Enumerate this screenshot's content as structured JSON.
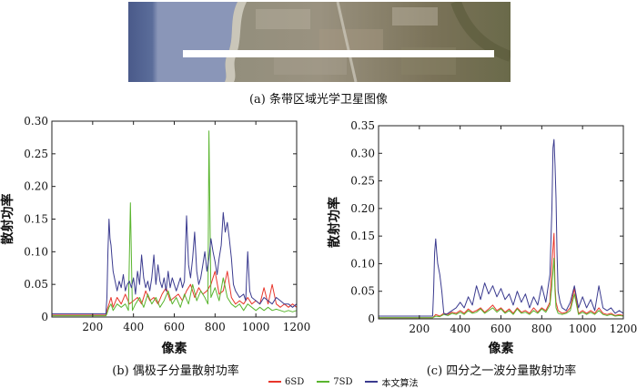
{
  "figure": {
    "caption_a": "(a) 条带区域光学卫星图像",
    "caption_b": "(b) 偶极子分量散射功率",
    "caption_c": "(c) 四分之一波分量散射功率"
  },
  "colors": {
    "6SD": "#e8362b",
    "7SD": "#5ab52f",
    "proposed": "#3b3b8f"
  },
  "legend": [
    "6SD",
    "7SD",
    "本文算法"
  ],
  "chart_data": [
    {
      "type": "line",
      "title": "",
      "xlabel": "像素",
      "ylabel": "散射功率",
      "xlim": [
        0,
        1200
      ],
      "ylim": [
        0,
        0.3
      ],
      "xticks": [
        200,
        400,
        600,
        800,
        1000,
        1200
      ],
      "yticks": [
        0,
        0.05,
        0.1,
        0.15,
        0.2,
        0.25,
        0.3
      ],
      "ytick_labels": [
        "0",
        "0.05",
        "0.10",
        "0.15",
        "0.20",
        "0.25",
        "0.30"
      ],
      "series": [
        {
          "name": "本文算法",
          "color": "#3b3b8f",
          "x": [
            0,
            265,
            270,
            275,
            280,
            285,
            290,
            295,
            300,
            310,
            320,
            330,
            340,
            350,
            360,
            370,
            380,
            390,
            400,
            410,
            420,
            430,
            440,
            450,
            460,
            470,
            480,
            490,
            500,
            510,
            520,
            530,
            540,
            550,
            560,
            570,
            580,
            590,
            600,
            610,
            620,
            630,
            640,
            650,
            660,
            670,
            680,
            690,
            700,
            710,
            720,
            730,
            740,
            750,
            760,
            770,
            780,
            790,
            800,
            810,
            820,
            830,
            840,
            850,
            860,
            870,
            880,
            890,
            900,
            920,
            940,
            950,
            960,
            970,
            980,
            1000,
            1020,
            1040,
            1060,
            1080,
            1100,
            1120,
            1140,
            1160,
            1180,
            1200
          ],
          "y": [
            0.005,
            0.005,
            0.03,
            0.1,
            0.15,
            0.12,
            0.11,
            0.09,
            0.07,
            0.055,
            0.04,
            0.055,
            0.045,
            0.065,
            0.04,
            0.05,
            0.055,
            0.045,
            0.06,
            0.035,
            0.07,
            0.05,
            0.095,
            0.06,
            0.045,
            0.055,
            0.04,
            0.06,
            0.095,
            0.05,
            0.08,
            0.055,
            0.045,
            0.06,
            0.04,
            0.07,
            0.045,
            0.06,
            0.05,
            0.04,
            0.05,
            0.06,
            0.045,
            0.055,
            0.155,
            0.08,
            0.06,
            0.09,
            0.13,
            0.07,
            0.05,
            0.06,
            0.08,
            0.1,
            0.07,
            0.09,
            0.12,
            0.1,
            0.085,
            0.065,
            0.09,
            0.11,
            0.16,
            0.13,
            0.145,
            0.12,
            0.09,
            0.05,
            0.04,
            0.03,
            0.035,
            0.025,
            0.1,
            0.04,
            0.03,
            0.025,
            0.02,
            0.03,
            0.025,
            0.02,
            0.03,
            0.025,
            0.02,
            0.02,
            0.015,
            0.02
          ]
        },
        {
          "name": "6SD",
          "color": "#e8362b",
          "x": [
            0,
            265,
            270,
            280,
            290,
            300,
            320,
            340,
            360,
            380,
            400,
            420,
            440,
            460,
            480,
            500,
            520,
            540,
            560,
            580,
            600,
            620,
            640,
            660,
            680,
            700,
            720,
            740,
            760,
            780,
            800,
            820,
            840,
            860,
            880,
            900,
            920,
            940,
            960,
            980,
            1000,
            1020,
            1040,
            1060,
            1080,
            1100,
            1120,
            1140,
            1160,
            1180,
            1200
          ],
          "y": [
            0.003,
            0.003,
            0.01,
            0.02,
            0.03,
            0.015,
            0.03,
            0.02,
            0.035,
            0.02,
            0.025,
            0.03,
            0.02,
            0.04,
            0.025,
            0.03,
            0.02,
            0.035,
            0.045,
            0.025,
            0.03,
            0.035,
            0.025,
            0.04,
            0.05,
            0.03,
            0.045,
            0.035,
            0.04,
            0.05,
            0.07,
            0.035,
            0.04,
            0.07,
            0.03,
            0.02,
            0.025,
            0.02,
            0.03,
            0.02,
            0.025,
            0.02,
            0.045,
            0.02,
            0.05,
            0.02,
            0.015,
            0.02,
            0.015,
            0.02,
            0.015
          ]
        },
        {
          "name": "7SD",
          "color": "#5ab52f",
          "x": [
            0,
            265,
            270,
            280,
            290,
            300,
            320,
            340,
            360,
            375,
            385,
            395,
            410,
            430,
            450,
            470,
            490,
            510,
            530,
            550,
            570,
            590,
            610,
            630,
            650,
            670,
            690,
            710,
            730,
            750,
            765,
            770,
            780,
            800,
            820,
            840,
            860,
            880,
            900,
            920,
            940,
            960,
            980,
            1000,
            1020,
            1040,
            1060,
            1080,
            1100,
            1120,
            1140,
            1160,
            1180,
            1200
          ],
          "y": [
            0.002,
            0.002,
            0.005,
            0.015,
            0.02,
            0.01,
            0.02,
            0.015,
            0.02,
            0.01,
            0.175,
            0.01,
            0.02,
            0.03,
            0.015,
            0.035,
            0.02,
            0.03,
            0.015,
            0.025,
            0.04,
            0.02,
            0.03,
            0.015,
            0.035,
            0.02,
            0.05,
            0.025,
            0.04,
            0.03,
            0.02,
            0.285,
            0.03,
            0.045,
            0.025,
            0.06,
            0.03,
            0.02,
            0.015,
            0.02,
            0.01,
            0.02,
            0.015,
            0.01,
            0.015,
            0.01,
            0.015,
            0.01,
            0.012,
            0.01,
            0.008,
            0.01,
            0.008,
            0.01
          ]
        }
      ]
    },
    {
      "type": "line",
      "title": "",
      "xlabel": "像素",
      "ylabel": "散射功率",
      "xlim": [
        0,
        1200
      ],
      "ylim": [
        0,
        0.35
      ],
      "xticks": [
        200,
        400,
        600,
        800,
        1000,
        1200
      ],
      "yticks": [
        0,
        0.05,
        0.1,
        0.15,
        0.2,
        0.25,
        0.3,
        0.35
      ],
      "ytick_labels": [
        "0",
        "0.05",
        "0.10",
        "0.15",
        "0.20",
        "0.25",
        "0.30",
        "0.35"
      ],
      "series": [
        {
          "name": "本文算法",
          "color": "#3b3b8f",
          "x": [
            0,
            265,
            270,
            275,
            280,
            285,
            290,
            300,
            310,
            320,
            330,
            340,
            360,
            380,
            400,
            420,
            440,
            460,
            480,
            500,
            520,
            540,
            560,
            580,
            600,
            620,
            640,
            660,
            680,
            700,
            720,
            740,
            760,
            780,
            800,
            820,
            840,
            850,
            855,
            860,
            865,
            870,
            875,
            880,
            890,
            900,
            920,
            940,
            960,
            980,
            1000,
            1020,
            1040,
            1060,
            1080,
            1100,
            1120,
            1140,
            1160,
            1180,
            1200
          ],
          "y": [
            0.005,
            0.005,
            0.05,
            0.12,
            0.145,
            0.12,
            0.1,
            0.08,
            0.05,
            0.01,
            0.008,
            0.01,
            0.015,
            0.02,
            0.03,
            0.02,
            0.04,
            0.025,
            0.06,
            0.035,
            0.065,
            0.045,
            0.06,
            0.04,
            0.055,
            0.035,
            0.045,
            0.025,
            0.05,
            0.03,
            0.045,
            0.02,
            0.04,
            0.025,
            0.06,
            0.03,
            0.08,
            0.2,
            0.31,
            0.325,
            0.28,
            0.22,
            0.12,
            0.05,
            0.03,
            0.02,
            0.015,
            0.03,
            0.06,
            0.02,
            0.04,
            0.02,
            0.035,
            0.015,
            0.06,
            0.02,
            0.015,
            0.02,
            0.01,
            0.015,
            0.01
          ]
        },
        {
          "name": "6SD",
          "color": "#e8362b",
          "x": [
            0,
            265,
            280,
            300,
            320,
            340,
            360,
            380,
            400,
            420,
            440,
            460,
            480,
            500,
            520,
            540,
            560,
            580,
            600,
            620,
            640,
            660,
            680,
            700,
            720,
            740,
            760,
            780,
            800,
            820,
            840,
            850,
            860,
            865,
            870,
            880,
            900,
            920,
            940,
            960,
            980,
            1000,
            1020,
            1040,
            1060,
            1080,
            1100,
            1120,
            1140,
            1160,
            1180,
            1200
          ],
          "y": [
            0.002,
            0.002,
            0.008,
            0.005,
            0.01,
            0.008,
            0.012,
            0.01,
            0.015,
            0.01,
            0.018,
            0.012,
            0.015,
            0.02,
            0.012,
            0.018,
            0.025,
            0.015,
            0.02,
            0.012,
            0.018,
            0.01,
            0.02,
            0.012,
            0.015,
            0.01,
            0.02,
            0.012,
            0.02,
            0.015,
            0.03,
            0.1,
            0.155,
            0.06,
            0.03,
            0.015,
            0.01,
            0.012,
            0.02,
            0.055,
            0.01,
            0.015,
            0.01,
            0.015,
            0.01,
            0.02,
            0.01,
            0.008,
            0.01,
            0.006,
            0.008,
            0.006
          ]
        },
        {
          "name": "7SD",
          "color": "#5ab52f",
          "x": [
            0,
            265,
            280,
            300,
            320,
            340,
            360,
            380,
            400,
            420,
            440,
            460,
            480,
            500,
            520,
            540,
            560,
            580,
            600,
            620,
            640,
            660,
            680,
            700,
            720,
            740,
            760,
            780,
            800,
            820,
            840,
            850,
            860,
            865,
            870,
            880,
            900,
            920,
            940,
            960,
            980,
            1000,
            1020,
            1040,
            1060,
            1080,
            1100,
            1120,
            1140,
            1160,
            1180,
            1200
          ],
          "y": [
            0.002,
            0.002,
            0.005,
            0.004,
            0.008,
            0.006,
            0.01,
            0.008,
            0.012,
            0.008,
            0.015,
            0.01,
            0.012,
            0.018,
            0.01,
            0.015,
            0.02,
            0.012,
            0.018,
            0.01,
            0.015,
            0.008,
            0.018,
            0.01,
            0.012,
            0.008,
            0.015,
            0.01,
            0.018,
            0.012,
            0.025,
            0.06,
            0.11,
            0.05,
            0.02,
            0.01,
            0.008,
            0.01,
            0.015,
            0.045,
            0.008,
            0.012,
            0.008,
            0.012,
            0.008,
            0.015,
            0.008,
            0.006,
            0.008,
            0.005,
            0.006,
            0.005
          ]
        }
      ]
    }
  ]
}
